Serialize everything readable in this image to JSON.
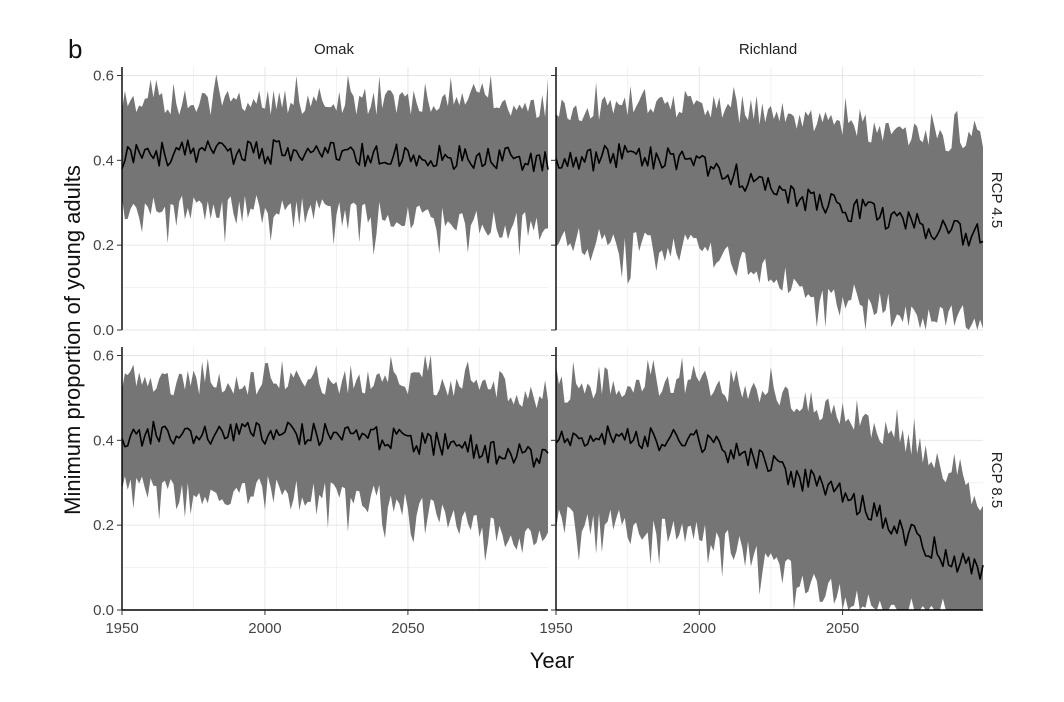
{
  "chart_data": {
    "type": "line",
    "panel_tag": "b",
    "columns": [
      "Omak",
      "Richland"
    ],
    "rows": [
      "RCP 4.5",
      "RCP 8.5"
    ],
    "xlabel": "Year",
    "ylabel": "Minimum proportion of young adults",
    "xlim": [
      1950,
      2099
    ],
    "ylim": [
      0,
      0.62
    ],
    "x_ticks": [
      1950,
      2000,
      2050
    ],
    "x_tick_labels": [
      "1950",
      "2000",
      "2050"
    ],
    "y_ticks": [
      0,
      0.2,
      0.4,
      0.6
    ],
    "y_tick_labels": [
      "0.0",
      "0.2",
      "0.4",
      "0.6"
    ],
    "grid": true,
    "band_color": "#6e6e6e",
    "line_color": "#000000",
    "panels": [
      {
        "column": "Omak",
        "row": "RCP 4.5",
        "series": [
          {
            "x": [
              1950,
              1975,
              2000,
              2025,
              2050,
              2075,
              2099
            ],
            "mean": [
              0.41,
              0.42,
              0.42,
              0.415,
              0.41,
              0.405,
              0.4
            ],
            "lower": [
              0.3,
              0.29,
              0.29,
              0.28,
              0.27,
              0.26,
              0.25
            ],
            "upper": [
              0.53,
              0.53,
              0.53,
              0.53,
              0.53,
              0.53,
              0.52
            ]
          }
        ]
      },
      {
        "column": "Richland",
        "row": "RCP 4.5",
        "series": [
          {
            "x": [
              1950,
              1975,
              2000,
              2025,
              2050,
              2075,
              2099
            ],
            "mean": [
              0.4,
              0.41,
              0.4,
              0.33,
              0.29,
              0.25,
              0.22
            ],
            "lower": [
              0.22,
              0.21,
              0.2,
              0.14,
              0.09,
              0.05,
              0.03
            ],
            "upper": [
              0.51,
              0.52,
              0.52,
              0.5,
              0.47,
              0.45,
              0.43
            ]
          }
        ]
      },
      {
        "column": "Omak",
        "row": "RCP 8.5",
        "series": [
          {
            "x": [
              1950,
              1975,
              2000,
              2025,
              2050,
              2075,
              2099
            ],
            "mean": [
              0.41,
              0.42,
              0.42,
              0.41,
              0.4,
              0.38,
              0.35
            ],
            "lower": [
              0.29,
              0.29,
              0.29,
              0.28,
              0.26,
              0.2,
              0.16
            ],
            "upper": [
              0.53,
              0.53,
              0.53,
              0.53,
              0.53,
              0.52,
              0.49
            ]
          }
        ]
      },
      {
        "column": "Richland",
        "row": "RCP 8.5",
        "series": [
          {
            "x": [
              1950,
              1975,
              2000,
              2025,
              2050,
              2075,
              2099
            ],
            "mean": [
              0.4,
              0.41,
              0.4,
              0.34,
              0.27,
              0.17,
              0.08
            ],
            "lower": [
              0.22,
              0.21,
              0.2,
              0.12,
              0.04,
              0.0,
              0.0
            ],
            "upper": [
              0.51,
              0.52,
              0.52,
              0.5,
              0.45,
              0.38,
              0.24
            ]
          }
        ]
      }
    ]
  }
}
